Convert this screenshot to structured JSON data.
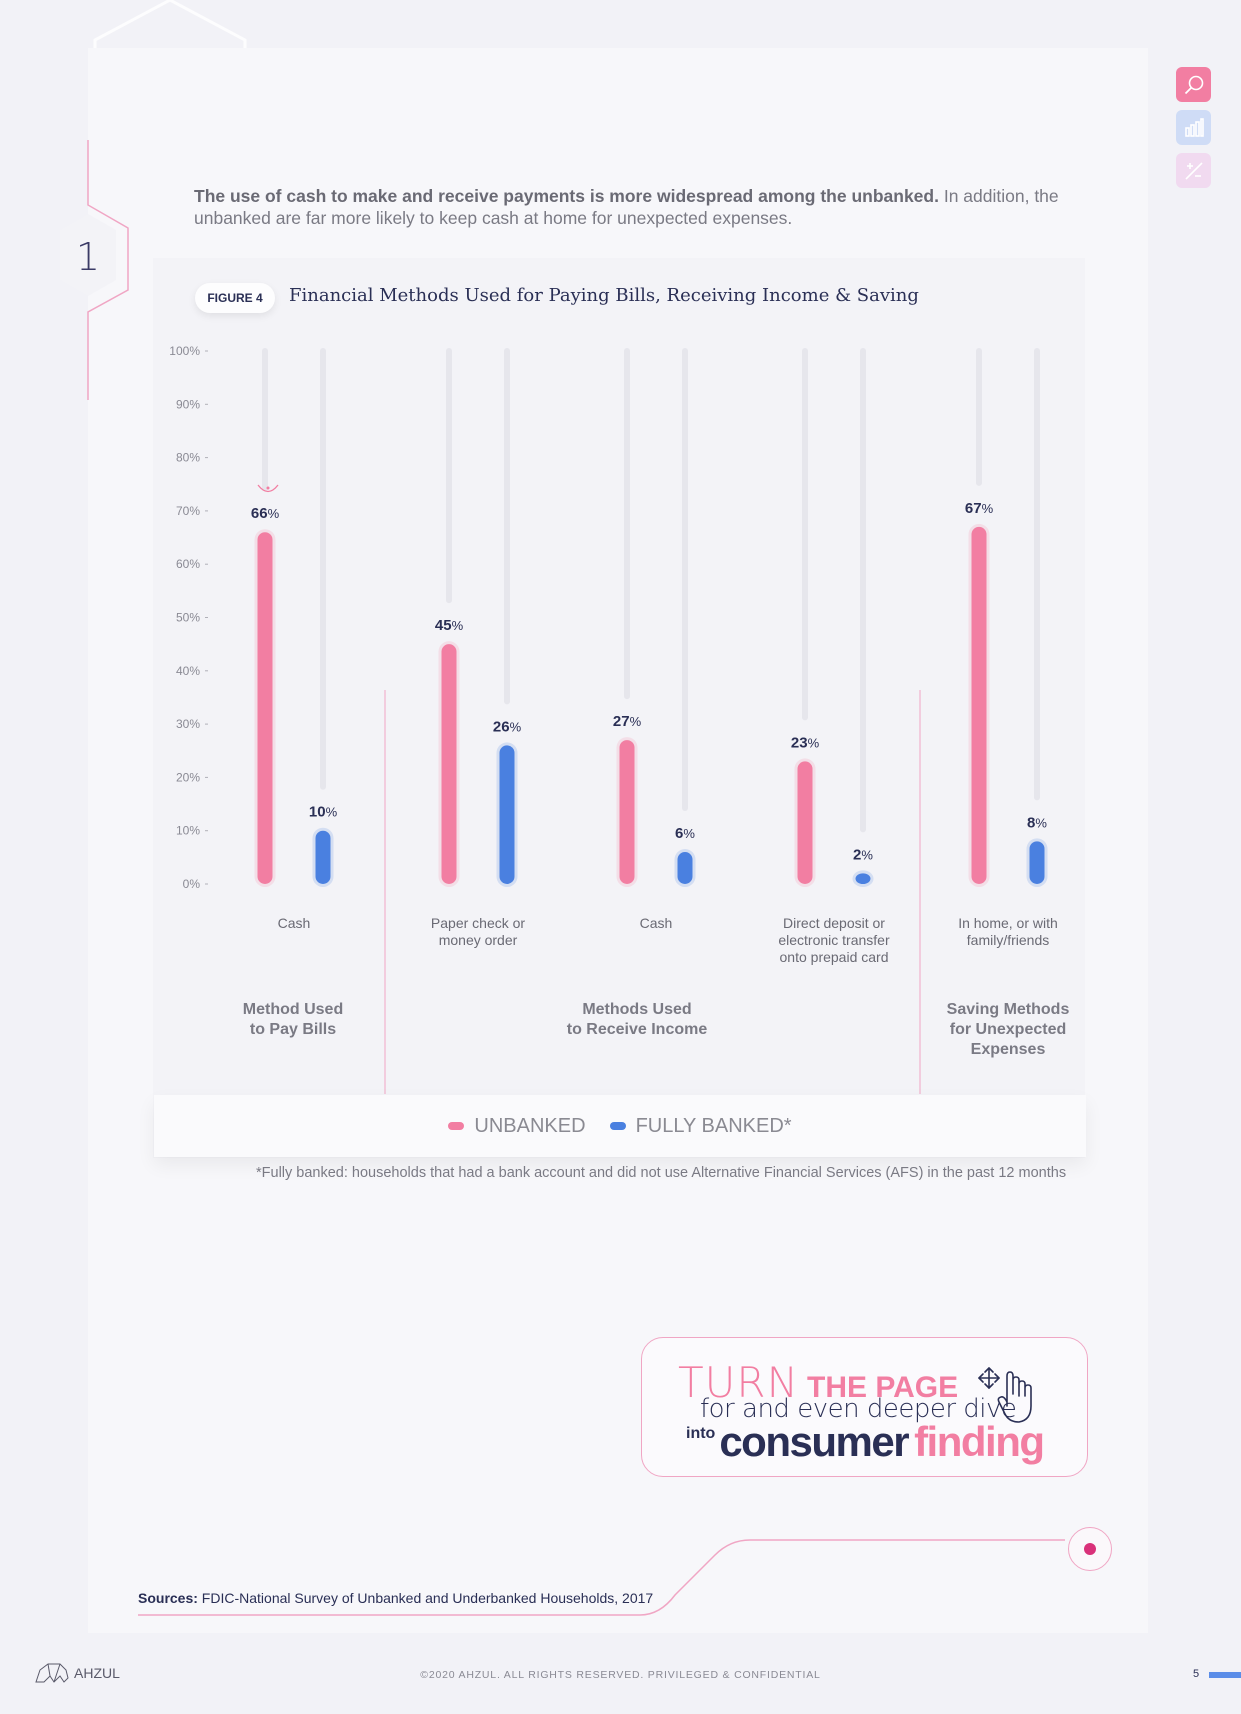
{
  "intro": {
    "bold": "The use of cash to make and receive payments is more widespread among the unbanked.",
    "rest": " In addition, the unbanked are far more likely to keep cash at home for unexpected expenses."
  },
  "section_number": "1",
  "figure": {
    "badge": "FIGURE 4",
    "title": "Financial Methods Used for Paying Bills, Receiving Income & Saving"
  },
  "tools": [
    "search-icon",
    "bar-chart-icon",
    "plus-minus-icon"
  ],
  "chart_data": {
    "type": "bar",
    "title": "Financial Methods Used for Paying Bills, Receiving Income & Saving",
    "categories": [
      "Cash",
      "Paper check or\nmoney order",
      "Cash",
      "Direct deposit or\nelectronic transfer\nonto prepaid card",
      "In home, or with\nfamily/friends"
    ],
    "groups": [
      {
        "label": "Method Used\nto Pay Bills",
        "categories": [
          0
        ]
      },
      {
        "label": "Methods Used\nto Receive Income",
        "categories": [
          1,
          2,
          3
        ]
      },
      {
        "label": "Saving Methods\nfor Unexpected\nExpenses",
        "categories": [
          4
        ]
      }
    ],
    "series": [
      {
        "name": "UNBANKED",
        "color": "#f27ea2",
        "values": [
          66,
          45,
          27,
          23,
          67
        ]
      },
      {
        "name": "FULLY BANKED*",
        "color": "#4a80e0",
        "values": [
          10,
          26,
          6,
          2,
          8
        ]
      }
    ],
    "ylim": [
      0,
      100
    ],
    "yticks": [
      0,
      10,
      20,
      30,
      40,
      50,
      60,
      70,
      80,
      90,
      100
    ],
    "tick_suffix": "%",
    "value_suffix": "%",
    "legend": "bottom"
  },
  "legend": {
    "unbanked": "UNBANKED",
    "fully_banked": "FULLY BANKED*"
  },
  "colors": {
    "unbanked": "#f27ea2",
    "fully_banked": "#4a80e0",
    "navy": "#2a2f55"
  },
  "footnote": "*Fully banked: households that had a bank account and did not use Alternative Financial Services (AFS) in the past 12 months",
  "cta": {
    "turn": "TURN",
    "the_page": "THE PAGE",
    "line2": "for and even deeper dive",
    "into": "into",
    "consumer": "consumer",
    "finding": "finding"
  },
  "sources": {
    "label": "Sources:",
    "text": " FDIC-National Survey of Unbanked and Underbanked Households, 2017"
  },
  "brand": "AHZUL",
  "copyright": "©2020 AHZUL. ALL RIGHTS RESERVED. PRIVILEGED & CONFIDENTIAL",
  "page_number": "5"
}
